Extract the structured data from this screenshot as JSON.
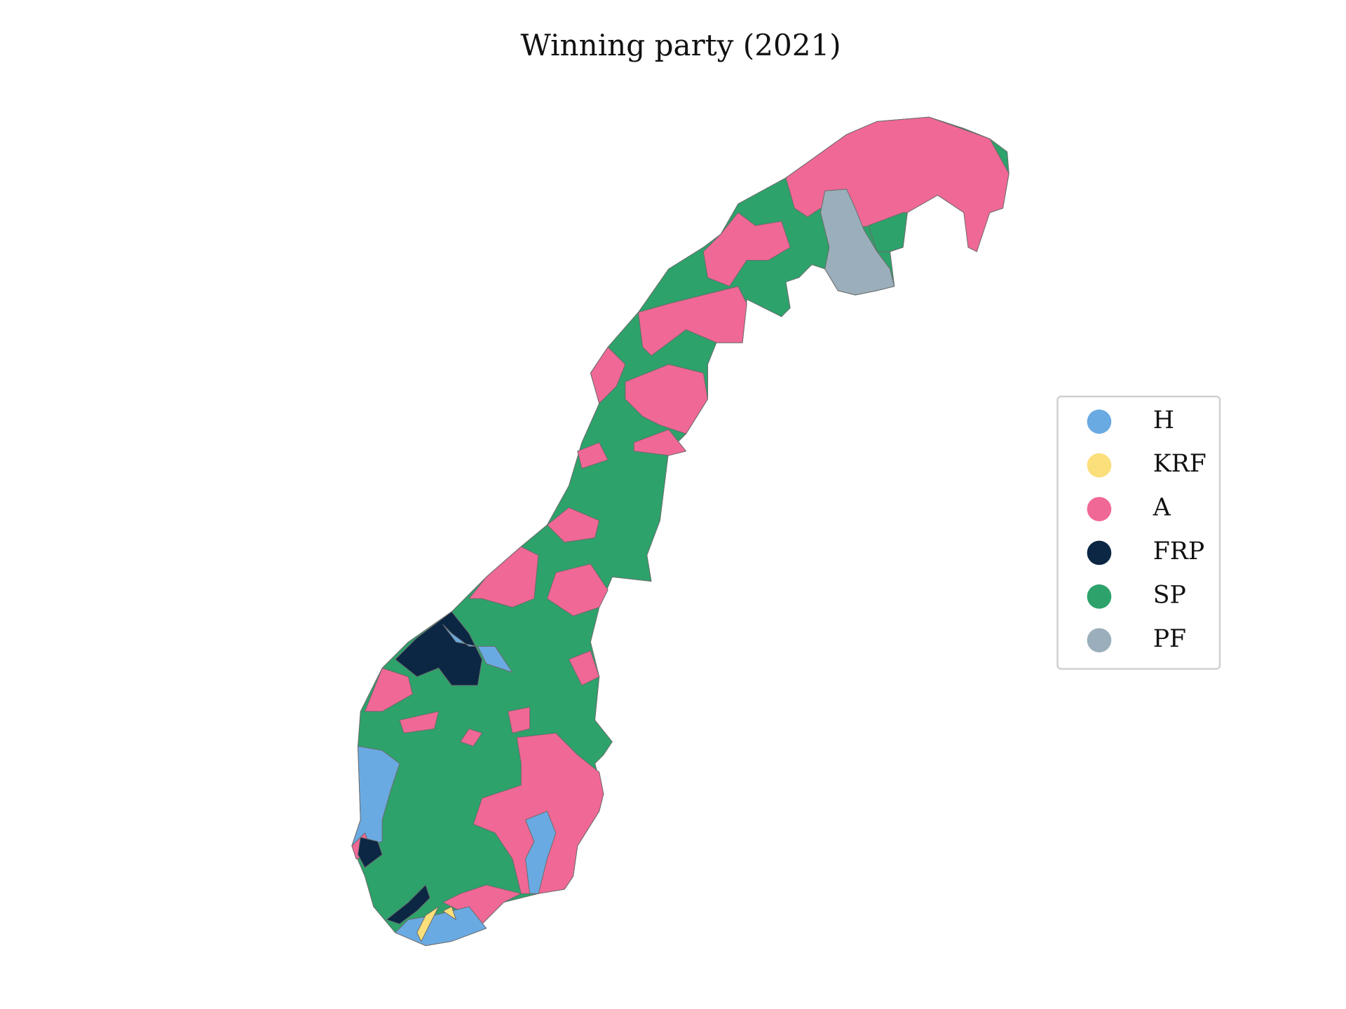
{
  "title": "Winning party (2021)",
  "legend": [
    {
      "label": "H",
      "color": "#6aaae2"
    },
    {
      "label": "KRF",
      "color": "#fbdf7b"
    },
    {
      "label": "A",
      "color": "#f06895"
    },
    {
      "label": "FRP",
      "color": "#0b2744"
    },
    {
      "label": "SP",
      "color": "#2da26b"
    },
    {
      "label": "PF",
      "color": "#9aafbb"
    }
  ]
}
